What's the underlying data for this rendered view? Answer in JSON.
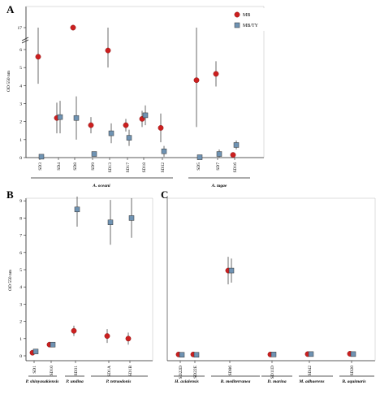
{
  "colors": {
    "MB": "#cc1f1f",
    "MB_TY": "#6f93b3",
    "axis": "#222222",
    "errbar": "#444444"
  },
  "chart_data": [
    {
      "panel": "A",
      "type": "scatter",
      "ylabel": "OD 550 nm",
      "yticks": [
        "0",
        "1",
        "2",
        "3",
        "4",
        "5",
        "6",
        "17"
      ],
      "axis_break_between": [
        "6",
        "17"
      ],
      "legend": [
        "MB",
        "MB/TY"
      ],
      "legend_position": "top-right",
      "categories": [
        "SD3",
        "SD4",
        "SD8",
        "SD9",
        "SD13",
        "SD17",
        "SD18",
        "SD32",
        "SD5",
        "SD7",
        "SD16"
      ],
      "groups": [
        {
          "label": "A. oceani",
          "categories": [
            "SD3",
            "SD4",
            "SD8",
            "SD9",
            "SD13",
            "SD17",
            "SD18",
            "SD32"
          ]
        },
        {
          "label": "A. tagae",
          "categories": [
            "SD5",
            "SD7",
            "SD16"
          ]
        }
      ],
      "series": [
        {
          "name": "MB",
          "marker": "circle",
          "values": [
            5.6,
            2.2,
            17,
            1.8,
            5.95,
            1.8,
            2.15,
            1.65,
            4.3,
            4.65,
            0.15
          ],
          "err": [
            1.5,
            0.85,
            1.0,
            0.45,
            0.95,
            0.35,
            0.45,
            0.8,
            2.6,
            0.7,
            0.05
          ]
        },
        {
          "name": "MB/TY",
          "marker": "square",
          "values": [
            0.05,
            2.25,
            2.2,
            0.2,
            1.35,
            1.1,
            2.35,
            0.35,
            0.02,
            0.2,
            0.7
          ],
          "err": [
            0.05,
            0.9,
            1.2,
            0.05,
            0.55,
            0.45,
            0.55,
            0.3,
            0.02,
            0.25,
            0.25
          ]
        }
      ]
    },
    {
      "panel": "B",
      "type": "scatter",
      "ylabel": "OD 550 nm",
      "yticks": [
        "0",
        "1",
        "2",
        "3",
        "4",
        "5",
        "6",
        "7",
        "8",
        "9"
      ],
      "categories": [
        "SD1",
        "SD10",
        "SD31",
        "SD1A",
        "SD1B"
      ],
      "groups": [
        {
          "label": "P. shinyasakiensis",
          "categories": [
            "SD1",
            "SD10"
          ]
        },
        {
          "label": "P. undina",
          "categories": [
            "SD31"
          ]
        },
        {
          "label": "P. tetraodonis",
          "categories": [
            "SD1A",
            "SD1B"
          ]
        }
      ],
      "series": [
        {
          "name": "MB",
          "marker": "circle",
          "values": [
            0.18,
            0.65,
            1.45,
            1.15,
            1.0
          ],
          "err": [
            0.05,
            0.1,
            0.3,
            0.4,
            0.35
          ]
        },
        {
          "name": "MB/TY",
          "marker": "square",
          "values": [
            0.25,
            0.65,
            8.5,
            7.75,
            8.0
          ],
          "err": [
            0.05,
            0.1,
            1.0,
            1.3,
            1.15
          ]
        }
      ]
    },
    {
      "panel": "C",
      "type": "scatter",
      "yticks": [],
      "categories": [
        "SD22D",
        "SD22E",
        "SD86",
        "SD11D",
        "SD42",
        "SD20"
      ],
      "groups": [
        {
          "label": "H. axialensis",
          "categories": [
            "SD22D",
            "SD22E"
          ]
        },
        {
          "label": "B. mediterranea",
          "categories": [
            "SD86"
          ]
        },
        {
          "label": "D. marina",
          "categories": [
            "SD11D"
          ]
        },
        {
          "label": "M. adhaerens",
          "categories": [
            "SD42"
          ]
        },
        {
          "label": "B. aquimaris",
          "categories": [
            "SD20"
          ]
        }
      ],
      "series": [
        {
          "name": "MB",
          "marker": "circle",
          "values": [
            0.08,
            0.08,
            4.95,
            0.08,
            0.1,
            0.12
          ],
          "err": [
            0.02,
            0.02,
            0.8,
            0.02,
            0.02,
            0.02
          ]
        },
        {
          "name": "MB/TY",
          "marker": "square",
          "values": [
            0.06,
            0.06,
            4.95,
            0.08,
            0.1,
            0.1
          ],
          "err": [
            0.02,
            0.02,
            0.7,
            0.02,
            0.02,
            0.02
          ]
        }
      ]
    }
  ]
}
